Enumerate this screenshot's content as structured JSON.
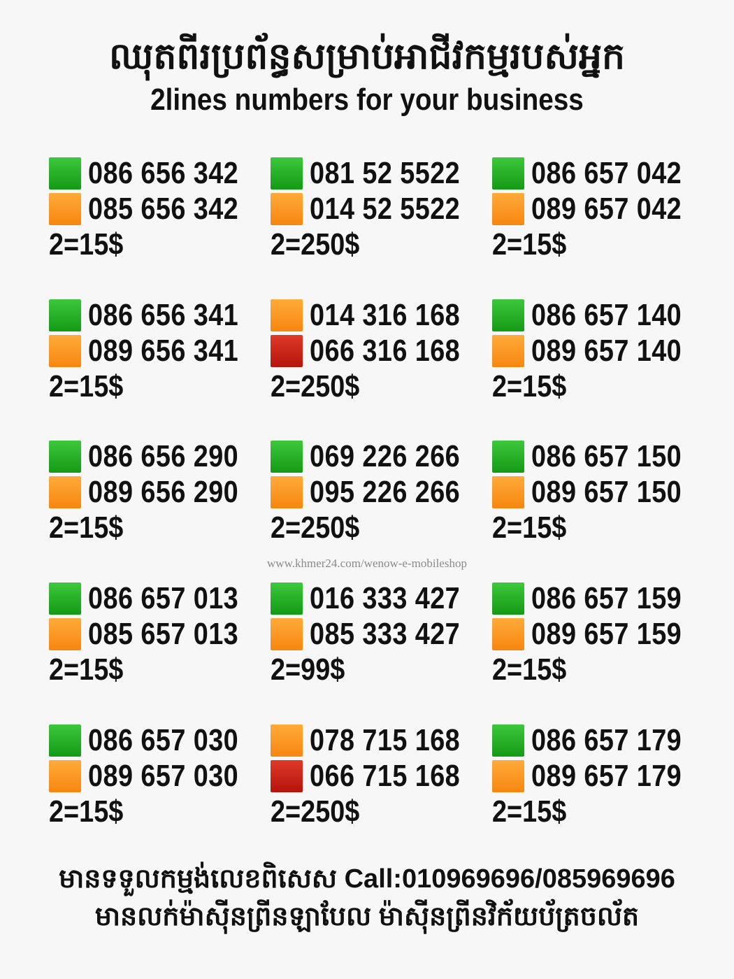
{
  "header": {
    "title_khmer": "ឈុតពីរប្រព័ន្ធសម្រាប់អាជីវកម្មរបស់អ្នក",
    "title_english": "2lines numbers for your business"
  },
  "colors": {
    "green": "#22aa22",
    "orange": "#ff9922",
    "red": "#cc2211"
  },
  "entries": [
    {
      "lines": [
        {
          "color": "green",
          "number": "086 656 342"
        },
        {
          "color": "orange",
          "number": "085 656 342"
        }
      ],
      "price": "2=15$"
    },
    {
      "lines": [
        {
          "color": "green",
          "number": "081 52 5522"
        },
        {
          "color": "orange",
          "number": "014 52 5522"
        }
      ],
      "price": "2=250$"
    },
    {
      "lines": [
        {
          "color": "green",
          "number": "086 657 042"
        },
        {
          "color": "orange",
          "number": "089 657 042"
        }
      ],
      "price": "2=15$"
    },
    {
      "lines": [
        {
          "color": "green",
          "number": "086 656 341"
        },
        {
          "color": "orange",
          "number": "089 656 341"
        }
      ],
      "price": "2=15$"
    },
    {
      "lines": [
        {
          "color": "orange",
          "number": "014 316 168"
        },
        {
          "color": "red",
          "number": "066 316 168"
        }
      ],
      "price": "2=250$"
    },
    {
      "lines": [
        {
          "color": "green",
          "number": "086 657 140"
        },
        {
          "color": "orange",
          "number": "089 657 140"
        }
      ],
      "price": "2=15$"
    },
    {
      "lines": [
        {
          "color": "green",
          "number": "086 656 290"
        },
        {
          "color": "orange",
          "number": "089 656 290"
        }
      ],
      "price": "2=15$"
    },
    {
      "lines": [
        {
          "color": "green",
          "number": "069 226 266"
        },
        {
          "color": "orange",
          "number": "095 226 266"
        }
      ],
      "price": "2=250$"
    },
    {
      "lines": [
        {
          "color": "green",
          "number": "086 657 150"
        },
        {
          "color": "orange",
          "number": "089 657 150"
        }
      ],
      "price": "2=15$"
    },
    {
      "lines": [
        {
          "color": "green",
          "number": "086 657 013"
        },
        {
          "color": "orange",
          "number": "085 657 013"
        }
      ],
      "price": "2=15$"
    },
    {
      "lines": [
        {
          "color": "green",
          "number": "016 333 427"
        },
        {
          "color": "orange",
          "number": "085 333 427"
        }
      ],
      "price": "2=99$"
    },
    {
      "lines": [
        {
          "color": "green",
          "number": "086 657 159"
        },
        {
          "color": "orange",
          "number": "089 657 159"
        }
      ],
      "price": "2=15$"
    },
    {
      "lines": [
        {
          "color": "green",
          "number": "086 657 030"
        },
        {
          "color": "orange",
          "number": "089 657 030"
        }
      ],
      "price": "2=15$"
    },
    {
      "lines": [
        {
          "color": "orange",
          "number": "078 715 168"
        },
        {
          "color": "red",
          "number": "066 715 168"
        }
      ],
      "price": "2=250$"
    },
    {
      "lines": [
        {
          "color": "green",
          "number": "086 657 179"
        },
        {
          "color": "orange",
          "number": "089 657 179"
        }
      ],
      "price": "2=15$"
    }
  ],
  "watermark": "www.khmer24.com/wenow-e-mobileshop",
  "footer": {
    "line1": "មានទទួលកម្មង់លេខពិសេស Call:010969696/085969696",
    "line2": "មានលក់ម៉ាស៊ីនព្រីនឡាបែល ម៉ាស៊ីនព្រីនវិក័យប័ត្រចល័ត"
  }
}
